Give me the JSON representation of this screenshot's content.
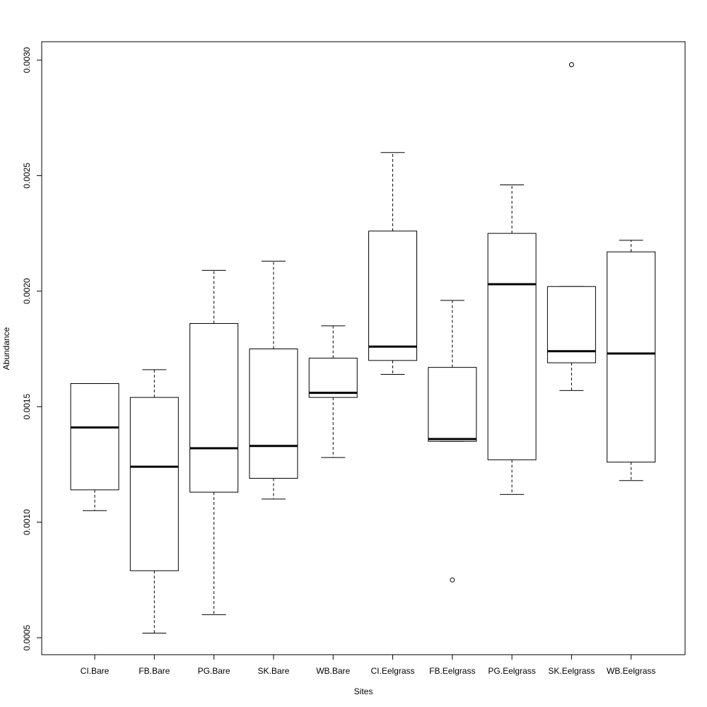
{
  "chart_data": {
    "type": "boxplot",
    "title": "",
    "xlabel": "Sites",
    "ylabel": "Abundance",
    "ylim": [
      0.00043,
      0.00308
    ],
    "yticks": [
      {
        "value": 0.0005,
        "label": "0.0005"
      },
      {
        "value": 0.001,
        "label": "0.0010"
      },
      {
        "value": 0.0015,
        "label": "0.0015"
      },
      {
        "value": 0.002,
        "label": "0.0020"
      },
      {
        "value": 0.0025,
        "label": "0.0025"
      },
      {
        "value": 0.003,
        "label": "0.0030"
      }
    ],
    "grid": false,
    "categories": [
      "CI.Bare",
      "FB.Bare",
      "PG.Bare",
      "SK.Bare",
      "WB.Bare",
      "CI.Eelgrass",
      "FB.Eelgrass",
      "PG.Eelgrass",
      "SK.Eelgrass",
      "WB.Eelgrass"
    ],
    "boxes": [
      {
        "name": "CI.Bare",
        "whisker_low": 0.00105,
        "q1": 0.00114,
        "median": 0.00141,
        "q3": 0.0016,
        "whisker_high": 0.0016,
        "outliers": []
      },
      {
        "name": "FB.Bare",
        "whisker_low": 0.00052,
        "q1": 0.00079,
        "median": 0.00124,
        "q3": 0.00154,
        "whisker_high": 0.00166,
        "outliers": []
      },
      {
        "name": "PG.Bare",
        "whisker_low": 0.0006,
        "q1": 0.00113,
        "median": 0.00132,
        "q3": 0.00186,
        "whisker_high": 0.00209,
        "outliers": []
      },
      {
        "name": "SK.Bare",
        "whisker_low": 0.0011,
        "q1": 0.00119,
        "median": 0.00133,
        "q3": 0.00175,
        "whisker_high": 0.00213,
        "outliers": []
      },
      {
        "name": "WB.Bare",
        "whisker_low": 0.00128,
        "q1": 0.00154,
        "median": 0.00156,
        "q3": 0.00171,
        "whisker_high": 0.00185,
        "outliers": []
      },
      {
        "name": "CI.Eelgrass",
        "whisker_low": 0.00164,
        "q1": 0.0017,
        "median": 0.00176,
        "q3": 0.00226,
        "whisker_high": 0.0026,
        "outliers": []
      },
      {
        "name": "FB.Eelgrass",
        "whisker_low": 0.00135,
        "q1": 0.00135,
        "median": 0.00136,
        "q3": 0.00167,
        "whisker_high": 0.00196,
        "outliers": [
          0.00075
        ]
      },
      {
        "name": "PG.Eelgrass",
        "whisker_low": 0.00112,
        "q1": 0.00127,
        "median": 0.00203,
        "q3": 0.00225,
        "whisker_high": 0.00246,
        "outliers": []
      },
      {
        "name": "SK.Eelgrass",
        "whisker_low": 0.00157,
        "q1": 0.00169,
        "median": 0.00174,
        "q3": 0.00202,
        "whisker_high": 0.00202,
        "outliers": [
          0.00298
        ]
      },
      {
        "name": "WB.Eelgrass",
        "whisker_low": 0.00118,
        "q1": 0.00126,
        "median": 0.00173,
        "q3": 0.00217,
        "whisker_high": 0.00222,
        "outliers": []
      }
    ]
  }
}
